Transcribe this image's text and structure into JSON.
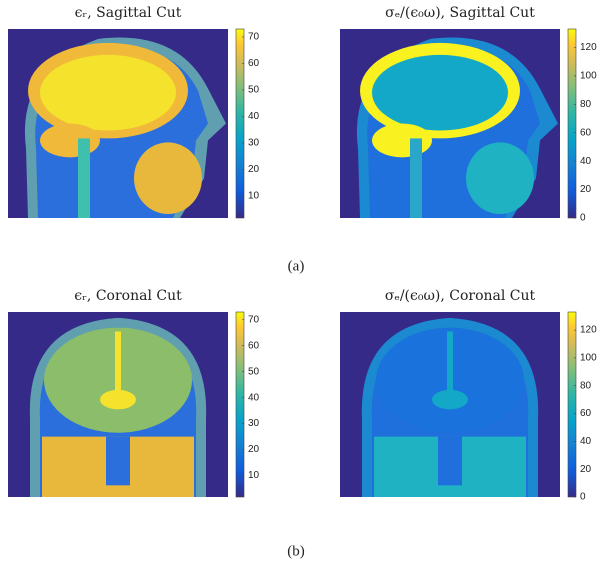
{
  "chart_data": [
    {
      "type": "heatmap",
      "title": "ϵᵣ, Sagittal Cut",
      "clim": [
        1.7,
        73
      ],
      "cticks": [
        10,
        20,
        30,
        40,
        50,
        60,
        70
      ]
    },
    {
      "type": "heatmap",
      "title": "σₑ/(ϵ₀ω), Sagittal Cut",
      "clim": [
        0,
        133
      ],
      "cticks": [
        0,
        20,
        40,
        60,
        80,
        100,
        120
      ]
    },
    {
      "type": "heatmap",
      "title": "ϵᵣ, Coronal Cut",
      "clim": [
        1.7,
        73
      ],
      "cticks": [
        10,
        20,
        30,
        40,
        50,
        60,
        70
      ]
    },
    {
      "type": "heatmap",
      "title": "σₑ/(ϵ₀ω), Coronal Cut",
      "clim": [
        0,
        133
      ],
      "cticks": [
        0,
        20,
        40,
        60,
        80,
        100,
        120
      ]
    }
  ],
  "captions": [
    "(a)",
    "(b)"
  ]
}
